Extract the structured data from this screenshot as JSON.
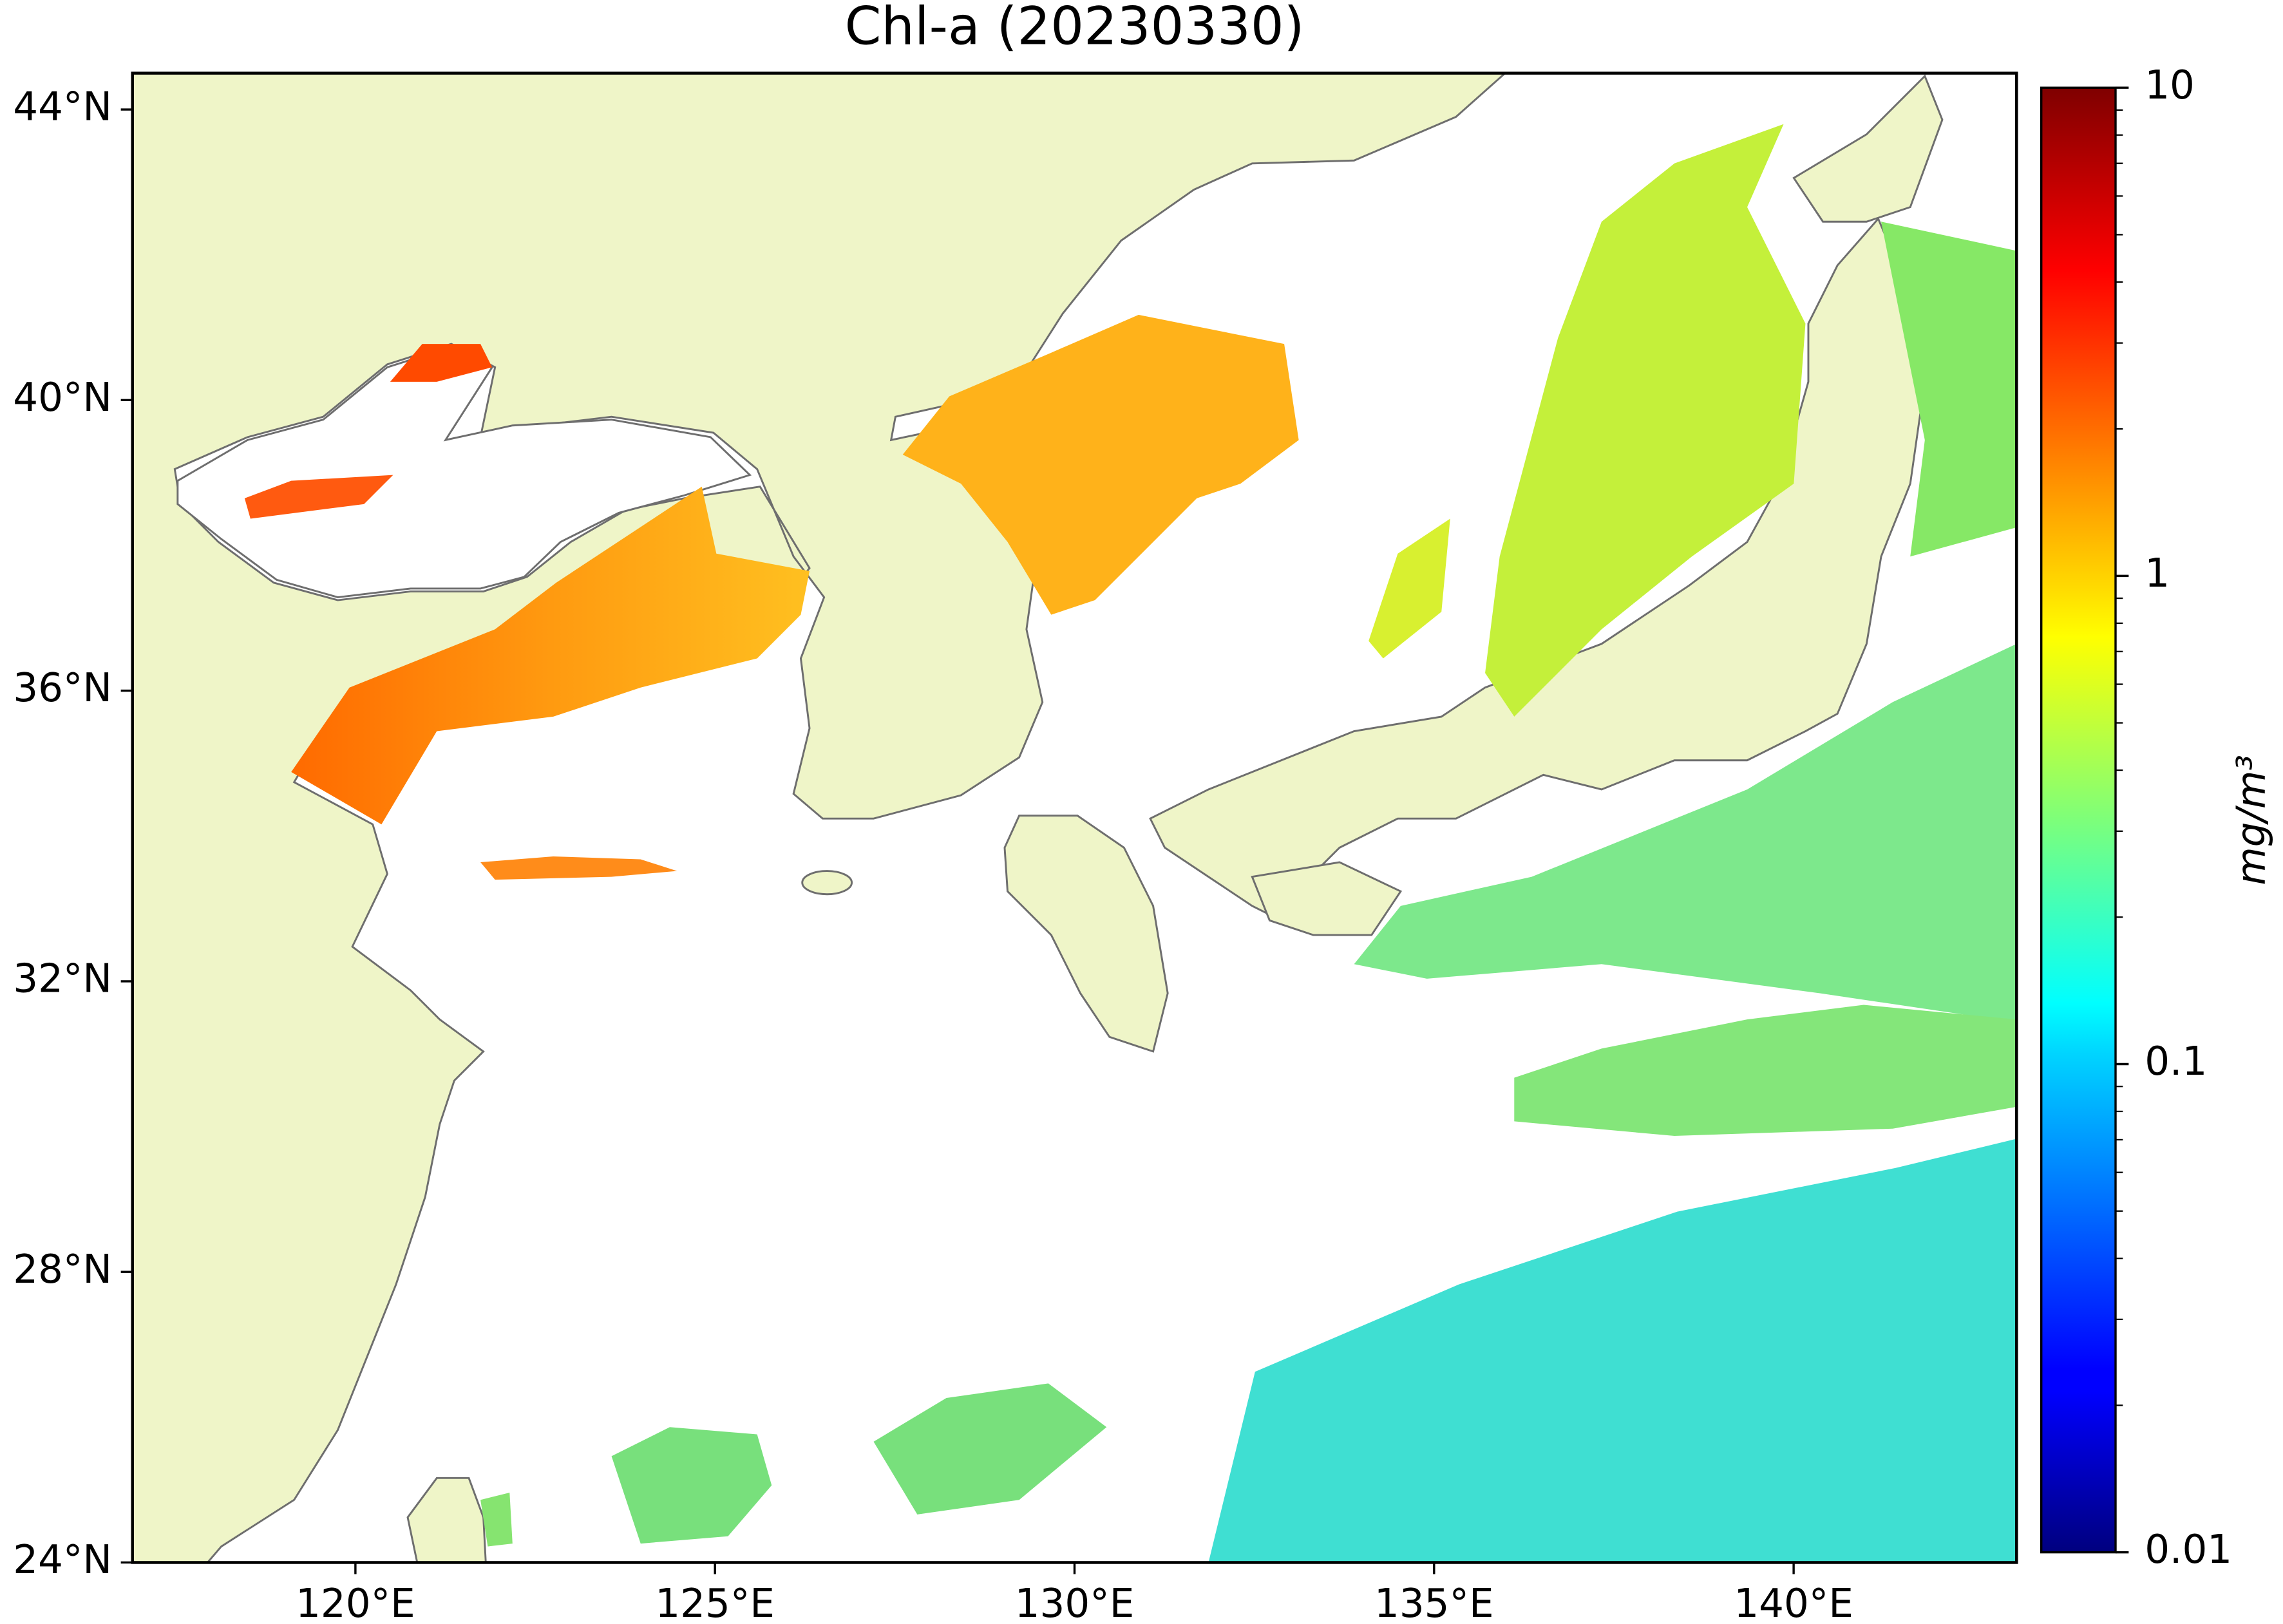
{
  "chart_data": {
    "type": "map",
    "title": "Chl-a (20230330)",
    "xlim": [
      116.9,
      143.1
    ],
    "ylim": [
      24,
      44.5
    ],
    "xticks": [
      {
        "value": 120,
        "label": "120°E"
      },
      {
        "value": 125,
        "label": "125°E"
      },
      {
        "value": 130,
        "label": "130°E"
      },
      {
        "value": 135,
        "label": "135°E"
      },
      {
        "value": 140,
        "label": "140°E"
      }
    ],
    "yticks": [
      {
        "value": 24,
        "label": "24°N"
      },
      {
        "value": 28,
        "label": "28°N"
      },
      {
        "value": 32,
        "label": "32°N"
      },
      {
        "value": 36,
        "label": "36°N"
      },
      {
        "value": 40,
        "label": "40°N"
      },
      {
        "value": 44,
        "label": "44°N"
      }
    ],
    "colorbar": {
      "label": "mg/m³",
      "colormap": "jet",
      "log_scale": true,
      "clim": [
        0.01,
        10
      ],
      "ticks": [
        0.01,
        0.1,
        1,
        10
      ]
    }
  }
}
